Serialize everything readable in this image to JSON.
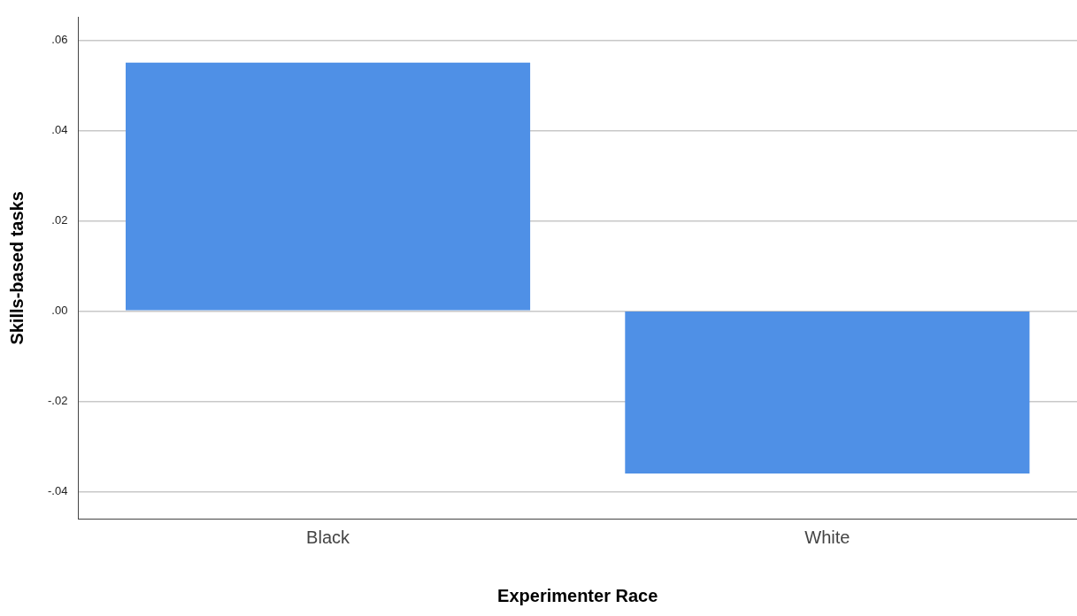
{
  "chart_data": {
    "type": "bar",
    "xlabel": "Experimenter Race",
    "ylabel": "Skills-based tasks",
    "categories": [
      "Black",
      "White"
    ],
    "values": [
      0.055,
      -0.036
    ],
    "color": "#4f90e6",
    "ylim": [
      -0.046,
      0.065
    ],
    "yticks": [
      {
        "value": -0.04,
        "label": "-.04"
      },
      {
        "value": -0.02,
        "label": "-.02"
      },
      {
        "value": 0,
        "label": ".00"
      },
      {
        "value": 0.02,
        "label": ".02"
      },
      {
        "value": 0.04,
        "label": ".04"
      },
      {
        "value": 0.06,
        "label": ".06"
      }
    ],
    "grid": "y",
    "legend": false
  }
}
